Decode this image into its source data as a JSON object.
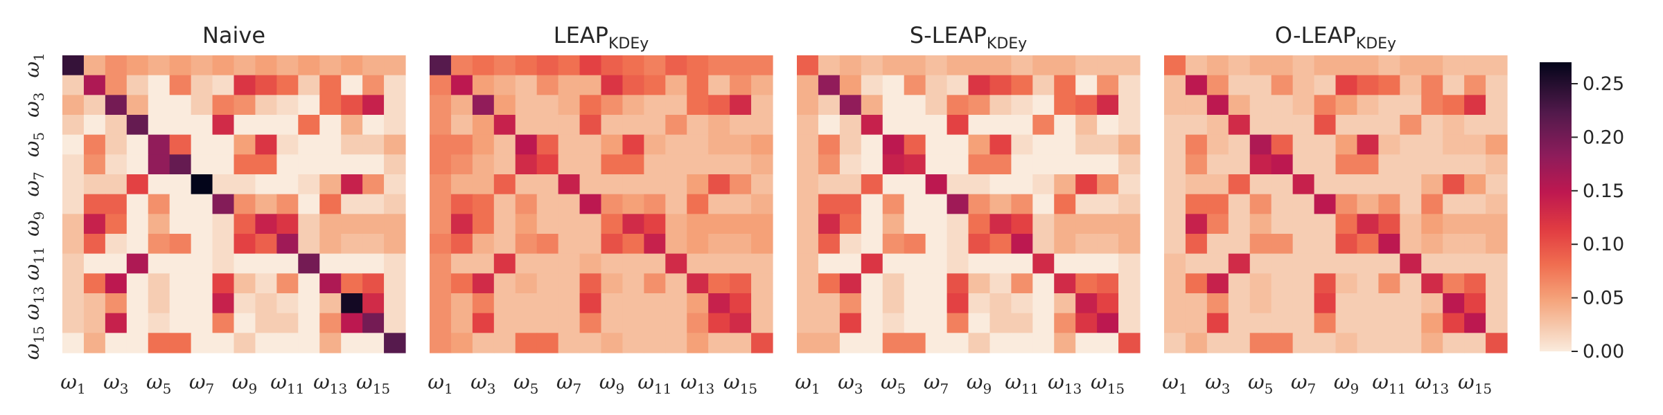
{
  "chart_data": {
    "type": "heatmap",
    "colormap": "rocket_r",
    "vmin": 0,
    "vmax": 0.27,
    "colorbar": {
      "ticks": [
        0.0,
        0.05,
        0.1,
        0.15,
        0.2,
        0.25
      ],
      "tick_labels": [
        "0.00",
        "0.05",
        "0.10",
        "0.15",
        "0.20",
        "0.25"
      ]
    },
    "tick_labels": [
      {
        "base": "ω",
        "sub": "1"
      },
      {
        "base": "ω",
        "sub": "3"
      },
      {
        "base": "ω",
        "sub": "5"
      },
      {
        "base": "ω",
        "sub": "7"
      },
      {
        "base": "ω",
        "sub": "9"
      },
      {
        "base": "ω",
        "sub": "11"
      },
      {
        "base": "ω",
        "sub": "13"
      },
      {
        "base": "ω",
        "sub": "15"
      }
    ],
    "panels": [
      {
        "title": "Naive",
        "title_sub": "",
        "matrix": [
          [
            0.24,
            0.04,
            0.06,
            0.05,
            0.04,
            0.05,
            0.04,
            0.05,
            0.04,
            0.05,
            0.04,
            0.05,
            0.04,
            0.05,
            0.04,
            0.04
          ],
          [
            0.02,
            0.16,
            0.06,
            0.02,
            0.0,
            0.07,
            0.02,
            0.01,
            0.12,
            0.1,
            0.08,
            0.02,
            0.08,
            0.0,
            0.06,
            0.01
          ],
          [
            0.04,
            0.02,
            0.2,
            0.04,
            0.0,
            0.0,
            0.02,
            0.07,
            0.06,
            0.02,
            0.01,
            0.0,
            0.08,
            0.1,
            0.14,
            0.01
          ],
          [
            0.02,
            0.0,
            0.02,
            0.21,
            0.0,
            0.0,
            0.0,
            0.13,
            0.0,
            0.0,
            0.0,
            0.08,
            0.0,
            0.04,
            0.0,
            0.01
          ],
          [
            0.0,
            0.07,
            0.02,
            0.0,
            0.18,
            0.09,
            0.0,
            0.0,
            0.05,
            0.12,
            0.01,
            0.0,
            0.0,
            0.02,
            0.02,
            0.04
          ],
          [
            0.01,
            0.06,
            0.01,
            0.0,
            0.18,
            0.21,
            0.0,
            0.0,
            0.08,
            0.08,
            0.0,
            0.0,
            0.0,
            0.0,
            0.0,
            0.02
          ],
          [
            0.01,
            0.02,
            0.02,
            0.11,
            0.0,
            0.0,
            0.27,
            0.01,
            0.01,
            0.0,
            0.0,
            0.01,
            0.04,
            0.14,
            0.06,
            0.01
          ],
          [
            0.01,
            0.09,
            0.09,
            0.0,
            0.06,
            0.0,
            0.0,
            0.19,
            0.06,
            0.04,
            0.06,
            0.0,
            0.08,
            0.01,
            0.01,
            0.02
          ],
          [
            0.03,
            0.14,
            0.08,
            0.0,
            0.04,
            0.0,
            0.0,
            0.01,
            0.09,
            0.14,
            0.12,
            0.02,
            0.04,
            0.04,
            0.04,
            0.04
          ],
          [
            0.03,
            0.09,
            0.01,
            0.0,
            0.06,
            0.07,
            0.0,
            0.01,
            0.11,
            0.09,
            0.17,
            0.02,
            0.04,
            0.03,
            0.03,
            0.04
          ],
          [
            0.02,
            0.0,
            0.0,
            0.16,
            0.0,
            0.0,
            0.0,
            0.01,
            0.0,
            0.0,
            0.0,
            0.2,
            0.0,
            0.0,
            0.0,
            0.01
          ],
          [
            0.02,
            0.08,
            0.15,
            0.0,
            0.02,
            0.0,
            0.0,
            0.11,
            0.03,
            0.01,
            0.06,
            0.0,
            0.16,
            0.08,
            0.1,
            0.01
          ],
          [
            0.02,
            0.03,
            0.06,
            0.0,
            0.02,
            0.0,
            0.0,
            0.14,
            0.01,
            0.02,
            0.01,
            0.0,
            0.03,
            0.26,
            0.13,
            0.01
          ],
          [
            0.02,
            0.03,
            0.14,
            0.0,
            0.01,
            0.0,
            0.0,
            0.07,
            0.0,
            0.02,
            0.02,
            0.0,
            0.06,
            0.15,
            0.2,
            0.01
          ],
          [
            0.0,
            0.04,
            0.0,
            0.0,
            0.08,
            0.08,
            0.0,
            0.0,
            0.02,
            0.0,
            0.0,
            0.0,
            0.04,
            0.0,
            0.0,
            0.22
          ]
        ]
      },
      {
        "title": "LEAP",
        "title_sub": "KDEy",
        "matrix": [
          [
            0.22,
            0.07,
            0.08,
            0.07,
            0.08,
            0.09,
            0.08,
            0.11,
            0.09,
            0.08,
            0.07,
            0.09,
            0.08,
            0.07,
            0.07,
            0.07
          ],
          [
            0.07,
            0.15,
            0.05,
            0.04,
            0.03,
            0.06,
            0.04,
            0.04,
            0.12,
            0.09,
            0.08,
            0.04,
            0.08,
            0.03,
            0.06,
            0.04
          ],
          [
            0.06,
            0.04,
            0.18,
            0.05,
            0.03,
            0.03,
            0.04,
            0.08,
            0.06,
            0.04,
            0.03,
            0.03,
            0.08,
            0.09,
            0.13,
            0.03
          ],
          [
            0.06,
            0.03,
            0.05,
            0.14,
            0.03,
            0.03,
            0.03,
            0.1,
            0.03,
            0.03,
            0.03,
            0.06,
            0.03,
            0.04,
            0.03,
            0.03
          ],
          [
            0.07,
            0.07,
            0.05,
            0.03,
            0.15,
            0.09,
            0.03,
            0.03,
            0.05,
            0.11,
            0.04,
            0.03,
            0.03,
            0.04,
            0.04,
            0.05
          ],
          [
            0.07,
            0.06,
            0.04,
            0.03,
            0.13,
            0.11,
            0.03,
            0.03,
            0.08,
            0.08,
            0.03,
            0.03,
            0.03,
            0.03,
            0.03,
            0.04
          ],
          [
            0.06,
            0.04,
            0.04,
            0.09,
            0.03,
            0.03,
            0.14,
            0.03,
            0.03,
            0.03,
            0.03,
            0.03,
            0.05,
            0.1,
            0.06,
            0.03
          ],
          [
            0.06,
            0.09,
            0.08,
            0.03,
            0.06,
            0.03,
            0.03,
            0.15,
            0.06,
            0.05,
            0.06,
            0.03,
            0.08,
            0.03,
            0.03,
            0.04
          ],
          [
            0.06,
            0.13,
            0.08,
            0.03,
            0.05,
            0.03,
            0.03,
            0.03,
            0.08,
            0.13,
            0.11,
            0.04,
            0.05,
            0.05,
            0.05,
            0.05
          ],
          [
            0.07,
            0.09,
            0.04,
            0.03,
            0.06,
            0.07,
            0.03,
            0.03,
            0.1,
            0.08,
            0.14,
            0.04,
            0.05,
            0.04,
            0.04,
            0.05
          ],
          [
            0.06,
            0.03,
            0.03,
            0.12,
            0.03,
            0.03,
            0.03,
            0.04,
            0.03,
            0.03,
            0.03,
            0.13,
            0.03,
            0.03,
            0.03,
            0.03
          ],
          [
            0.06,
            0.08,
            0.13,
            0.03,
            0.04,
            0.03,
            0.03,
            0.09,
            0.04,
            0.03,
            0.06,
            0.03,
            0.13,
            0.08,
            0.09,
            0.03
          ],
          [
            0.06,
            0.04,
            0.07,
            0.03,
            0.03,
            0.03,
            0.03,
            0.11,
            0.03,
            0.03,
            0.03,
            0.03,
            0.05,
            0.14,
            0.11,
            0.03
          ],
          [
            0.06,
            0.04,
            0.11,
            0.03,
            0.03,
            0.03,
            0.03,
            0.07,
            0.03,
            0.03,
            0.03,
            0.03,
            0.06,
            0.11,
            0.13,
            0.03
          ],
          [
            0.06,
            0.05,
            0.03,
            0.03,
            0.08,
            0.08,
            0.03,
            0.03,
            0.04,
            0.03,
            0.03,
            0.03,
            0.05,
            0.03,
            0.03,
            0.1
          ]
        ]
      },
      {
        "title": "S-LEAP",
        "title_sub": "KDEy",
        "matrix": [
          [
            0.09,
            0.03,
            0.04,
            0.03,
            0.04,
            0.04,
            0.03,
            0.04,
            0.04,
            0.04,
            0.03,
            0.04,
            0.04,
            0.03,
            0.03,
            0.03
          ],
          [
            0.04,
            0.18,
            0.05,
            0.01,
            0.0,
            0.06,
            0.02,
            0.01,
            0.12,
            0.1,
            0.08,
            0.02,
            0.08,
            0.0,
            0.06,
            0.01
          ],
          [
            0.04,
            0.02,
            0.18,
            0.04,
            0.0,
            0.0,
            0.02,
            0.07,
            0.06,
            0.02,
            0.01,
            0.0,
            0.08,
            0.09,
            0.13,
            0.01
          ],
          [
            0.03,
            0.0,
            0.02,
            0.14,
            0.0,
            0.0,
            0.0,
            0.11,
            0.0,
            0.0,
            0.0,
            0.07,
            0.0,
            0.03,
            0.0,
            0.01
          ],
          [
            0.03,
            0.07,
            0.02,
            0.0,
            0.15,
            0.09,
            0.0,
            0.0,
            0.05,
            0.11,
            0.01,
            0.0,
            0.0,
            0.02,
            0.02,
            0.04
          ],
          [
            0.03,
            0.06,
            0.01,
            0.0,
            0.14,
            0.13,
            0.0,
            0.0,
            0.07,
            0.07,
            0.0,
            0.0,
            0.0,
            0.0,
            0.0,
            0.02
          ],
          [
            0.03,
            0.02,
            0.02,
            0.09,
            0.0,
            0.0,
            0.15,
            0.01,
            0.01,
            0.0,
            0.0,
            0.01,
            0.04,
            0.11,
            0.06,
            0.01
          ],
          [
            0.03,
            0.09,
            0.09,
            0.0,
            0.06,
            0.0,
            0.0,
            0.17,
            0.06,
            0.04,
            0.06,
            0.0,
            0.08,
            0.01,
            0.01,
            0.02
          ],
          [
            0.03,
            0.13,
            0.08,
            0.0,
            0.04,
            0.0,
            0.0,
            0.01,
            0.08,
            0.13,
            0.11,
            0.02,
            0.04,
            0.04,
            0.04,
            0.04
          ],
          [
            0.03,
            0.09,
            0.01,
            0.0,
            0.06,
            0.07,
            0.0,
            0.01,
            0.1,
            0.08,
            0.15,
            0.02,
            0.04,
            0.03,
            0.03,
            0.04
          ],
          [
            0.03,
            0.0,
            0.0,
            0.12,
            0.0,
            0.0,
            0.0,
            0.01,
            0.0,
            0.0,
            0.0,
            0.13,
            0.0,
            0.0,
            0.0,
            0.01
          ],
          [
            0.03,
            0.08,
            0.13,
            0.0,
            0.02,
            0.0,
            0.0,
            0.1,
            0.03,
            0.01,
            0.06,
            0.0,
            0.13,
            0.08,
            0.09,
            0.01
          ],
          [
            0.03,
            0.03,
            0.06,
            0.0,
            0.02,
            0.0,
            0.0,
            0.11,
            0.01,
            0.02,
            0.01,
            0.0,
            0.03,
            0.14,
            0.11,
            0.01
          ],
          [
            0.03,
            0.03,
            0.11,
            0.0,
            0.01,
            0.0,
            0.0,
            0.07,
            0.0,
            0.02,
            0.02,
            0.0,
            0.06,
            0.12,
            0.15,
            0.01
          ],
          [
            0.04,
            0.04,
            0.0,
            0.0,
            0.07,
            0.07,
            0.0,
            0.0,
            0.02,
            0.0,
            0.0,
            0.0,
            0.04,
            0.0,
            0.0,
            0.1
          ]
        ]
      },
      {
        "title": "O-LEAP",
        "title_sub": "KDEy",
        "matrix": [
          [
            0.08,
            0.03,
            0.04,
            0.03,
            0.04,
            0.04,
            0.03,
            0.04,
            0.04,
            0.04,
            0.03,
            0.04,
            0.04,
            0.03,
            0.03,
            0.03
          ],
          [
            0.03,
            0.15,
            0.06,
            0.02,
            0.02,
            0.06,
            0.03,
            0.02,
            0.11,
            0.09,
            0.08,
            0.03,
            0.07,
            0.02,
            0.06,
            0.02
          ],
          [
            0.03,
            0.03,
            0.15,
            0.04,
            0.02,
            0.02,
            0.03,
            0.07,
            0.05,
            0.03,
            0.02,
            0.02,
            0.07,
            0.08,
            0.12,
            0.02
          ],
          [
            0.02,
            0.02,
            0.03,
            0.13,
            0.02,
            0.02,
            0.02,
            0.1,
            0.02,
            0.02,
            0.02,
            0.06,
            0.02,
            0.03,
            0.02,
            0.02
          ],
          [
            0.02,
            0.07,
            0.03,
            0.02,
            0.16,
            0.09,
            0.02,
            0.02,
            0.05,
            0.13,
            0.03,
            0.02,
            0.02,
            0.03,
            0.03,
            0.05
          ],
          [
            0.02,
            0.06,
            0.02,
            0.02,
            0.14,
            0.15,
            0.02,
            0.02,
            0.07,
            0.07,
            0.02,
            0.02,
            0.02,
            0.02,
            0.02,
            0.03
          ],
          [
            0.02,
            0.03,
            0.03,
            0.09,
            0.02,
            0.02,
            0.14,
            0.02,
            0.02,
            0.02,
            0.02,
            0.02,
            0.04,
            0.1,
            0.05,
            0.02
          ],
          [
            0.02,
            0.08,
            0.08,
            0.02,
            0.06,
            0.02,
            0.02,
            0.15,
            0.06,
            0.04,
            0.06,
            0.02,
            0.07,
            0.02,
            0.02,
            0.03
          ],
          [
            0.02,
            0.14,
            0.07,
            0.02,
            0.04,
            0.02,
            0.02,
            0.02,
            0.08,
            0.13,
            0.1,
            0.03,
            0.05,
            0.04,
            0.04,
            0.04
          ],
          [
            0.02,
            0.09,
            0.02,
            0.02,
            0.06,
            0.06,
            0.02,
            0.02,
            0.1,
            0.08,
            0.15,
            0.03,
            0.04,
            0.03,
            0.03,
            0.04
          ],
          [
            0.03,
            0.02,
            0.02,
            0.13,
            0.02,
            0.02,
            0.02,
            0.02,
            0.02,
            0.02,
            0.02,
            0.14,
            0.02,
            0.02,
            0.02,
            0.02
          ],
          [
            0.03,
            0.08,
            0.14,
            0.02,
            0.03,
            0.02,
            0.02,
            0.1,
            0.03,
            0.02,
            0.06,
            0.02,
            0.13,
            0.07,
            0.09,
            0.02
          ],
          [
            0.03,
            0.03,
            0.06,
            0.02,
            0.03,
            0.02,
            0.02,
            0.11,
            0.02,
            0.02,
            0.02,
            0.02,
            0.03,
            0.15,
            0.11,
            0.02
          ],
          [
            0.03,
            0.03,
            0.11,
            0.02,
            0.02,
            0.02,
            0.02,
            0.07,
            0.02,
            0.02,
            0.02,
            0.02,
            0.05,
            0.11,
            0.15,
            0.02
          ],
          [
            0.02,
            0.04,
            0.02,
            0.02,
            0.07,
            0.07,
            0.02,
            0.02,
            0.03,
            0.02,
            0.02,
            0.02,
            0.04,
            0.02,
            0.02,
            0.1
          ]
        ]
      }
    ]
  }
}
